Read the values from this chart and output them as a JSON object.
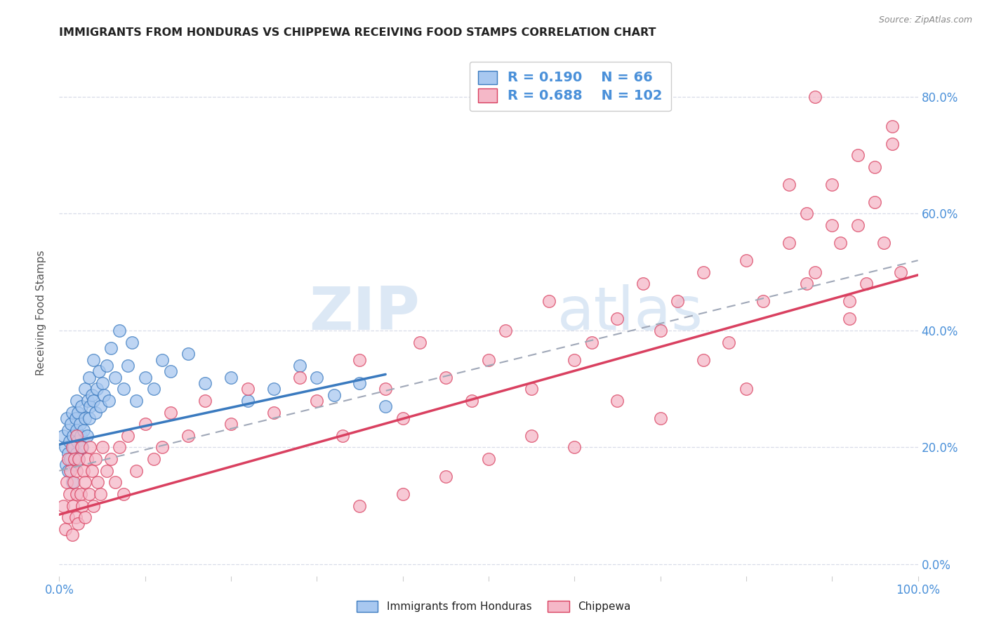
{
  "title": "IMMIGRANTS FROM HONDURAS VS CHIPPEWA RECEIVING FOOD STAMPS CORRELATION CHART",
  "source": "Source: ZipAtlas.com",
  "ylabel": "Receiving Food Stamps",
  "xlim": [
    0.0,
    1.0
  ],
  "ylim": [
    -0.02,
    0.88
  ],
  "r_blue": 0.19,
  "n_blue": 66,
  "r_pink": 0.688,
  "n_pink": 102,
  "blue_color": "#a8c8f0",
  "pink_color": "#f5b8c8",
  "blue_line_color": "#3a7abf",
  "pink_line_color": "#d94060",
  "gray_dashed_color": "#a0a8b8",
  "background_color": "#ffffff",
  "grid_color": "#d8dce8",
  "watermark_color": "#dce8f5",
  "title_color": "#222222",
  "axis_label_color": "#555555",
  "tick_color": "#4a90d9",
  "blue_scatter_x": [
    0.005,
    0.007,
    0.008,
    0.009,
    0.01,
    0.01,
    0.01,
    0.012,
    0.013,
    0.014,
    0.015,
    0.015,
    0.016,
    0.017,
    0.018,
    0.019,
    0.02,
    0.02,
    0.02,
    0.021,
    0.022,
    0.023,
    0.024,
    0.025,
    0.026,
    0.027,
    0.028,
    0.03,
    0.03,
    0.032,
    0.033,
    0.035,
    0.035,
    0.036,
    0.038,
    0.04,
    0.04,
    0.042,
    0.044,
    0.046,
    0.048,
    0.05,
    0.052,
    0.055,
    0.058,
    0.06,
    0.065,
    0.07,
    0.075,
    0.08,
    0.085,
    0.09,
    0.1,
    0.11,
    0.12,
    0.13,
    0.15,
    0.17,
    0.2,
    0.22,
    0.25,
    0.28,
    0.3,
    0.32,
    0.35,
    0.38
  ],
  "blue_scatter_y": [
    0.22,
    0.2,
    0.17,
    0.25,
    0.19,
    0.23,
    0.16,
    0.21,
    0.18,
    0.24,
    0.26,
    0.14,
    0.22,
    0.2,
    0.17,
    0.25,
    0.23,
    0.19,
    0.28,
    0.21,
    0.26,
    0.18,
    0.24,
    0.22,
    0.27,
    0.2,
    0.23,
    0.25,
    0.3,
    0.22,
    0.28,
    0.25,
    0.32,
    0.27,
    0.29,
    0.28,
    0.35,
    0.26,
    0.3,
    0.33,
    0.27,
    0.31,
    0.29,
    0.34,
    0.28,
    0.37,
    0.32,
    0.4,
    0.3,
    0.34,
    0.38,
    0.28,
    0.32,
    0.3,
    0.35,
    0.33,
    0.36,
    0.31,
    0.32,
    0.28,
    0.3,
    0.34,
    0.32,
    0.29,
    0.31,
    0.27
  ],
  "pink_scatter_x": [
    0.005,
    0.007,
    0.009,
    0.01,
    0.01,
    0.012,
    0.013,
    0.015,
    0.015,
    0.016,
    0.017,
    0.018,
    0.019,
    0.02,
    0.02,
    0.02,
    0.022,
    0.023,
    0.025,
    0.026,
    0.027,
    0.028,
    0.03,
    0.03,
    0.032,
    0.035,
    0.036,
    0.038,
    0.04,
    0.042,
    0.045,
    0.048,
    0.05,
    0.055,
    0.06,
    0.065,
    0.07,
    0.075,
    0.08,
    0.09,
    0.1,
    0.11,
    0.12,
    0.13,
    0.15,
    0.17,
    0.2,
    0.22,
    0.25,
    0.28,
    0.3,
    0.33,
    0.35,
    0.38,
    0.4,
    0.42,
    0.45,
    0.48,
    0.5,
    0.52,
    0.55,
    0.57,
    0.6,
    0.62,
    0.65,
    0.68,
    0.7,
    0.72,
    0.75,
    0.78,
    0.8,
    0.82,
    0.85,
    0.87,
    0.88,
    0.9,
    0.91,
    0.92,
    0.93,
    0.94,
    0.95,
    0.96,
    0.97,
    0.98,
    0.9,
    0.85,
    0.88,
    0.92,
    0.95,
    0.97,
    0.93,
    0.87,
    0.8,
    0.75,
    0.7,
    0.65,
    0.6,
    0.55,
    0.5,
    0.45,
    0.4,
    0.35
  ],
  "pink_scatter_y": [
    0.1,
    0.06,
    0.14,
    0.08,
    0.18,
    0.12,
    0.16,
    0.05,
    0.2,
    0.1,
    0.14,
    0.18,
    0.08,
    0.16,
    0.12,
    0.22,
    0.07,
    0.18,
    0.12,
    0.2,
    0.1,
    0.16,
    0.14,
    0.08,
    0.18,
    0.12,
    0.2,
    0.16,
    0.1,
    0.18,
    0.14,
    0.12,
    0.2,
    0.16,
    0.18,
    0.14,
    0.2,
    0.12,
    0.22,
    0.16,
    0.24,
    0.18,
    0.2,
    0.26,
    0.22,
    0.28,
    0.24,
    0.3,
    0.26,
    0.32,
    0.28,
    0.22,
    0.35,
    0.3,
    0.25,
    0.38,
    0.32,
    0.28,
    0.35,
    0.4,
    0.3,
    0.45,
    0.35,
    0.38,
    0.42,
    0.48,
    0.4,
    0.45,
    0.5,
    0.38,
    0.52,
    0.45,
    0.55,
    0.6,
    0.5,
    0.65,
    0.55,
    0.45,
    0.7,
    0.48,
    0.62,
    0.55,
    0.75,
    0.5,
    0.58,
    0.65,
    0.8,
    0.42,
    0.68,
    0.72,
    0.58,
    0.48,
    0.3,
    0.35,
    0.25,
    0.28,
    0.2,
    0.22,
    0.18,
    0.15,
    0.12,
    0.1
  ],
  "blue_trend_x0": 0.0,
  "blue_trend_y0": 0.205,
  "blue_trend_x1": 0.38,
  "blue_trend_y1": 0.325,
  "pink_trend_x0": 0.0,
  "pink_trend_y0": 0.085,
  "pink_trend_x1": 1.0,
  "pink_trend_y1": 0.495,
  "gray_trend_x0": 0.0,
  "gray_trend_y0": 0.16,
  "gray_trend_x1": 1.0,
  "gray_trend_y1": 0.52
}
